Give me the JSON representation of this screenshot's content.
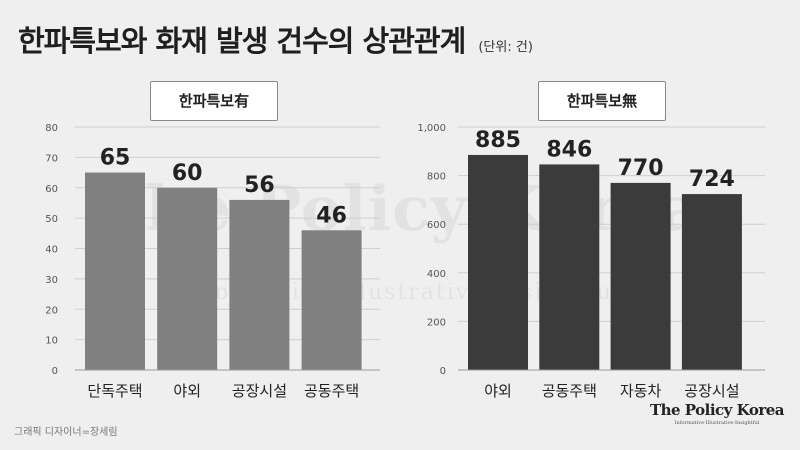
{
  "header": {
    "title": "한파특보와 화재 발생 건수의 상관관계",
    "unit": "(단위: 건)"
  },
  "watermark": {
    "main": "The Policy Korea",
    "sub": "Informative Illustrative Insightful"
  },
  "footer": {
    "credit": "그래픽 디자이너=장세림",
    "brand_name": "The Policy Korea",
    "brand_tagline": "Informative·Illustrative·Insightful"
  },
  "colors": {
    "left_bars": "#808080",
    "right_bars": "#3b3b3b",
    "background": "#efefef"
  },
  "chart_data": [
    {
      "type": "bar",
      "title": "한파특보有",
      "categories": [
        "단독주택",
        "야외",
        "공장시설",
        "공동주택"
      ],
      "values": [
        65,
        60,
        56,
        46
      ],
      "ylim": [
        0,
        80
      ],
      "yticks": [
        0,
        10,
        20,
        30,
        40,
        50,
        60,
        70,
        80
      ],
      "ytick_labels": [
        "0",
        "10",
        "20",
        "30",
        "40",
        "50",
        "60",
        "70",
        "80"
      ],
      "grid": true
    },
    {
      "type": "bar",
      "title": "한파특보無",
      "categories": [
        "야외",
        "공동주택",
        "자동차",
        "공장시설"
      ],
      "values": [
        885,
        846,
        770,
        724
      ],
      "ylim": [
        0,
        1000
      ],
      "yticks": [
        0,
        200,
        400,
        600,
        800,
        1000
      ],
      "ytick_labels": [
        "0",
        "200",
        "400",
        "600",
        "800",
        "1,000"
      ],
      "grid": true
    }
  ]
}
